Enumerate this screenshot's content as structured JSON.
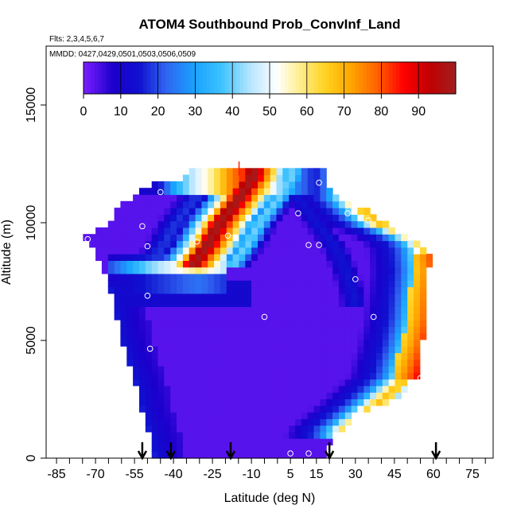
{
  "chart_data": {
    "type": "heatmap",
    "title": "ATOM4 Southbound Prob_ConvInf_Land",
    "subtitle_flights": "Flts: 2,3,4,5,6,7",
    "subtitle_dates": "MMDD: 0427,0429,0501,0503,0506,0509",
    "xlabel": "Latitude (deg N)",
    "ylabel": "Altitude (m)",
    "xlim": [
      -89,
      83
    ],
    "ylim": [
      0,
      17500
    ],
    "x_ticks": [
      -85,
      -70,
      -55,
      -40,
      -25,
      -10,
      5,
      15,
      30,
      45,
      60,
      75
    ],
    "x_tick_labels": [
      "-85",
      "-70",
      "-55",
      "-40",
      "-25",
      "-10",
      "5",
      "15",
      "30",
      "45",
      "60",
      "75"
    ],
    "y_ticks": [
      0,
      5000,
      10000,
      15000
    ],
    "y_tick_labels": [
      "0",
      "5000",
      "10000",
      "15000"
    ],
    "colorbar": {
      "min": 0,
      "max": 100,
      "tick_values": [
        0,
        10,
        20,
        30,
        40,
        50,
        60,
        70,
        80,
        90
      ],
      "tick_labels": [
        "0",
        "10",
        "20",
        "30",
        "40",
        "50",
        "60",
        "70",
        "80",
        "90"
      ],
      "color_stops": [
        {
          "v": 0,
          "c": "#7b1fff"
        },
        {
          "v": 8,
          "c": "#1b00cc"
        },
        {
          "v": 15,
          "c": "#1010d0"
        },
        {
          "v": 22,
          "c": "#2f63f0"
        },
        {
          "v": 30,
          "c": "#19a3ff"
        },
        {
          "v": 37,
          "c": "#3dc2ff"
        },
        {
          "v": 45,
          "c": "#b9e6ff"
        },
        {
          "v": 52,
          "c": "#ffffff"
        },
        {
          "v": 58,
          "c": "#ffee90"
        },
        {
          "v": 65,
          "c": "#ffd21f"
        },
        {
          "v": 72,
          "c": "#ffa500"
        },
        {
          "v": 79,
          "c": "#ff6000"
        },
        {
          "v": 86,
          "c": "#ff0000"
        },
        {
          "v": 93,
          "c": "#c00000"
        },
        {
          "v": 100,
          "c": "#a02020"
        }
      ]
    },
    "arrows_latitude": [
      -52,
      -41,
      -18,
      20,
      61
    ],
    "station_markers": [
      {
        "lat": -45,
        "alt": 11300
      },
      {
        "lat": 16,
        "alt": 11700
      },
      {
        "lat": -52,
        "alt": 9850
      },
      {
        "lat": -78,
        "alt": 9300
      },
      {
        "lat": -73,
        "alt": 9300
      },
      {
        "lat": -50,
        "alt": 9000
      },
      {
        "lat": -31,
        "alt": 9200
      },
      {
        "lat": -19,
        "alt": 9450
      },
      {
        "lat": 8,
        "alt": 10400
      },
      {
        "lat": 27,
        "alt": 10400
      },
      {
        "lat": 35,
        "alt": 10100
      },
      {
        "lat": 12,
        "alt": 9050
      },
      {
        "lat": 16,
        "alt": 9050
      },
      {
        "lat": 30,
        "alt": 7600
      },
      {
        "lat": -50,
        "alt": 6900
      },
      {
        "lat": -5,
        "alt": 6000
      },
      {
        "lat": 37,
        "alt": 6000
      },
      {
        "lat": -49,
        "alt": 4650
      },
      {
        "lat": 55,
        "alt": 3400
      },
      {
        "lat": 5,
        "alt": 200
      },
      {
        "lat": 12,
        "alt": 200
      },
      {
        "lat": 20,
        "alt": 200
      }
    ]
  }
}
